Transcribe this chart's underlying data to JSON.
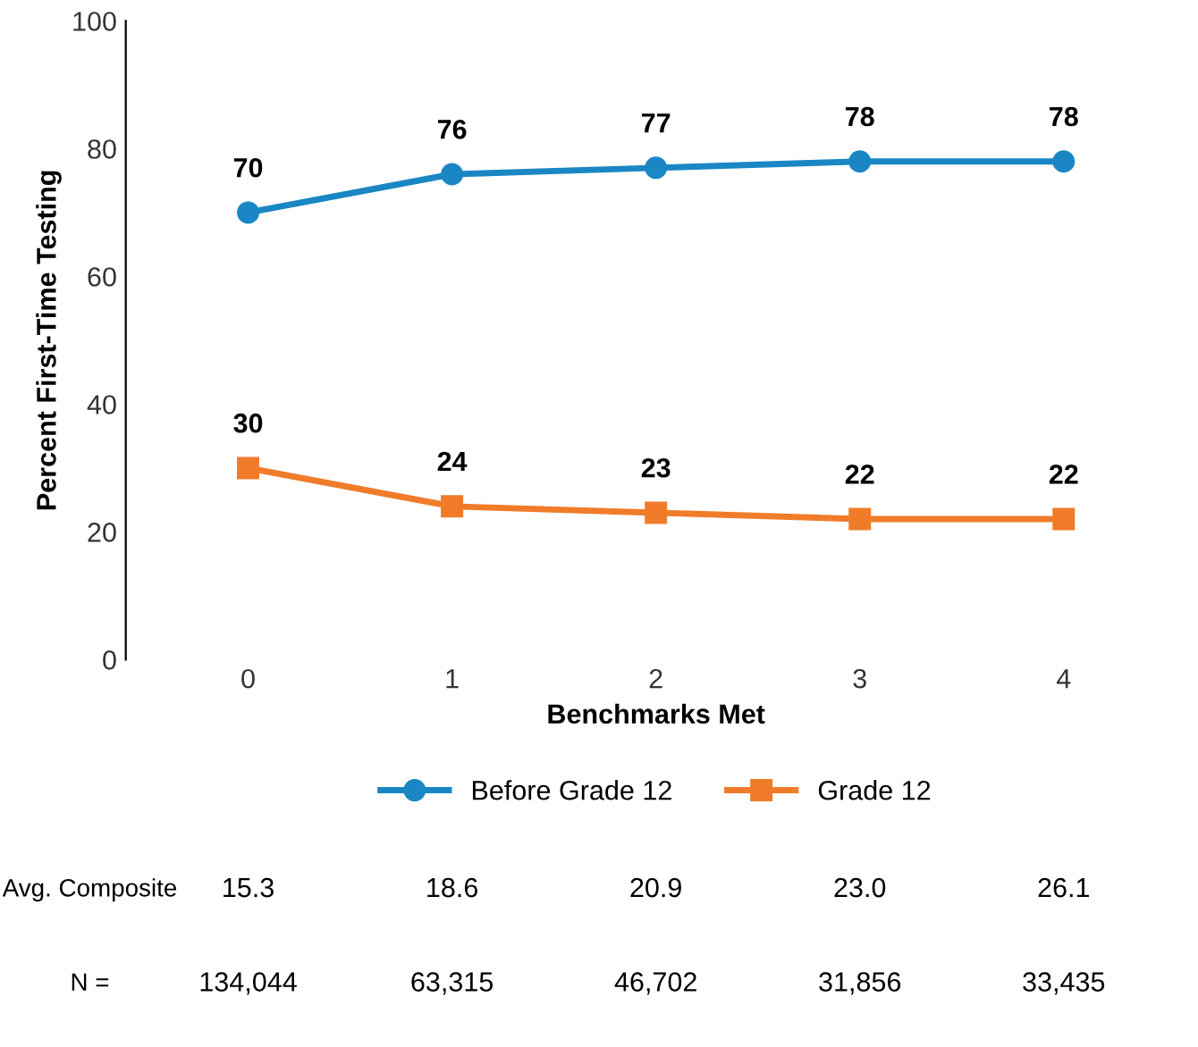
{
  "chart_data": {
    "type": "line",
    "xlabel": "Benchmarks Met",
    "ylabel": "Percent First-Time Testing",
    "categories": [
      "0",
      "1",
      "2",
      "3",
      "4"
    ],
    "series": [
      {
        "name": "Before Grade 12",
        "color": "#1a87c4",
        "marker": "circle",
        "values": [
          70,
          76,
          77,
          78,
          78
        ]
      },
      {
        "name": "Grade 12",
        "color": "#f07c2a",
        "marker": "square",
        "values": [
          30,
          24,
          23,
          22,
          22
        ]
      }
    ],
    "ylim": [
      0,
      100
    ],
    "yticks": [
      0,
      20,
      40,
      60,
      80,
      100
    ],
    "grid": false,
    "legend": "bottom",
    "data_labels": true,
    "line_style": "solid",
    "annotations": [
      "Avg. Composite",
      "15.3",
      "18.6",
      "20.9",
      "23.0",
      "26.1",
      "N =",
      "134,044",
      "63,315",
      "46,702",
      "31,856",
      "33,435"
    ]
  }
}
